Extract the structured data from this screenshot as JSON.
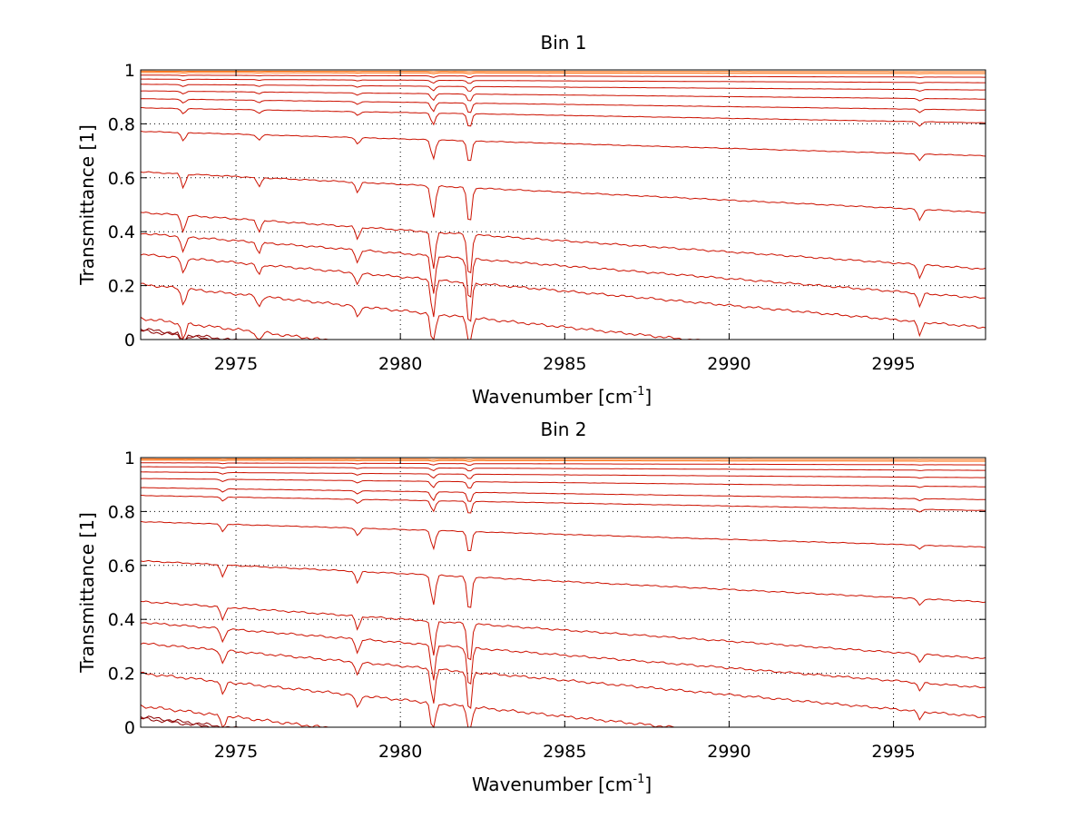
{
  "chart_data": [
    {
      "type": "line",
      "title": "Bin 1",
      "xlabel_main": "Wavenumber [cm",
      "xlabel_sup": "-1",
      "xlabel_end": "]",
      "ylabel": "Transmittance [1]",
      "xlim": [
        2972.1,
        2997.8
      ],
      "ylim": [
        0,
        1
      ],
      "x_ticks": [
        "2975",
        "2980",
        "2985",
        "2990",
        "2995"
      ],
      "y_ticks": [
        "0",
        "0.2",
        "0.4",
        "0.6",
        "0.8",
        "1"
      ],
      "grid": "dotted",
      "baselines": [
        0.995,
        0.99,
        0.98,
        0.965,
        0.945,
        0.92,
        0.89,
        0.855,
        0.765,
        0.61,
        0.455,
        0.375,
        0.295,
        0.18,
        0.05,
        0.01,
        0.003
      ],
      "absorption_lines": [
        {
          "x": 2973.4,
          "depth": 0.06
        },
        {
          "x": 2975.7,
          "depth": 0.04
        },
        {
          "x": 2978.7,
          "depth": 0.045
        },
        {
          "x": 2981.0,
          "depth": 0.14
        },
        {
          "x": 2982.1,
          "depth": 0.17
        },
        {
          "x": 2995.8,
          "depth": 0.05
        }
      ]
    },
    {
      "type": "line",
      "title": "Bin 2",
      "xlabel_main": "Wavenumber [cm",
      "xlabel_sup": "-1",
      "xlabel_end": "]",
      "ylabel": "Transmittance [1]",
      "xlim": [
        2972.1,
        2997.8
      ],
      "ylim": [
        0,
        1
      ],
      "x_ticks": [
        "2975",
        "2980",
        "2985",
        "2990",
        "2995"
      ],
      "y_ticks": [
        "0",
        "0.2",
        "0.4",
        "0.6",
        "0.8",
        "1"
      ],
      "grid": "dotted",
      "baselines": [
        0.995,
        0.99,
        0.98,
        0.965,
        0.945,
        0.92,
        0.885,
        0.855,
        0.755,
        0.605,
        0.45,
        0.37,
        0.29,
        0.175,
        0.05,
        0.01,
        0.003
      ],
      "absorption_lines": [
        {
          "x": 2974.6,
          "depth": 0.05
        },
        {
          "x": 2978.7,
          "depth": 0.05
        },
        {
          "x": 2981.0,
          "depth": 0.13
        },
        {
          "x": 2982.1,
          "depth": 0.16
        },
        {
          "x": 2995.8,
          "depth": 0.03
        }
      ]
    }
  ],
  "colors": {
    "trace": "#cc1100",
    "trace_top": "#ff6600",
    "trace_bottom": "#8b0000",
    "grid": "#000000",
    "axis": "#000000"
  }
}
